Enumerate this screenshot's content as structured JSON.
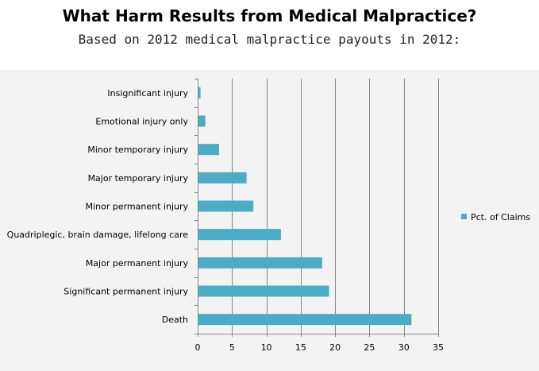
{
  "chart_data": {
    "type": "bar",
    "orientation": "horizontal",
    "title": "What Harm Results from Medical Malpractice?",
    "subtitle": "Based on 2012 medical malpractice payouts in 2012:",
    "categories": [
      "Insignificant injury",
      "Emotional injury only",
      "Minor temporary injury",
      "Major temporary injury",
      "Minor permanent injury",
      "Quadriplegic, brain damage, lifelong care",
      "Major permanent injury",
      "Significant permanent injury",
      "Death"
    ],
    "series": [
      {
        "name": "Pct. of Claims",
        "values": [
          0.3,
          1,
          3,
          7,
          8,
          12,
          18,
          19,
          31
        ]
      }
    ],
    "xlim": [
      0,
      35
    ],
    "xticks": [
      "0",
      "5",
      "10",
      "15",
      "20",
      "25",
      "30",
      "35"
    ],
    "grid": true,
    "legend": "right",
    "colors": {
      "bar": "#4bacc6",
      "grid": "#868686",
      "background": "#f3f3f3"
    }
  }
}
